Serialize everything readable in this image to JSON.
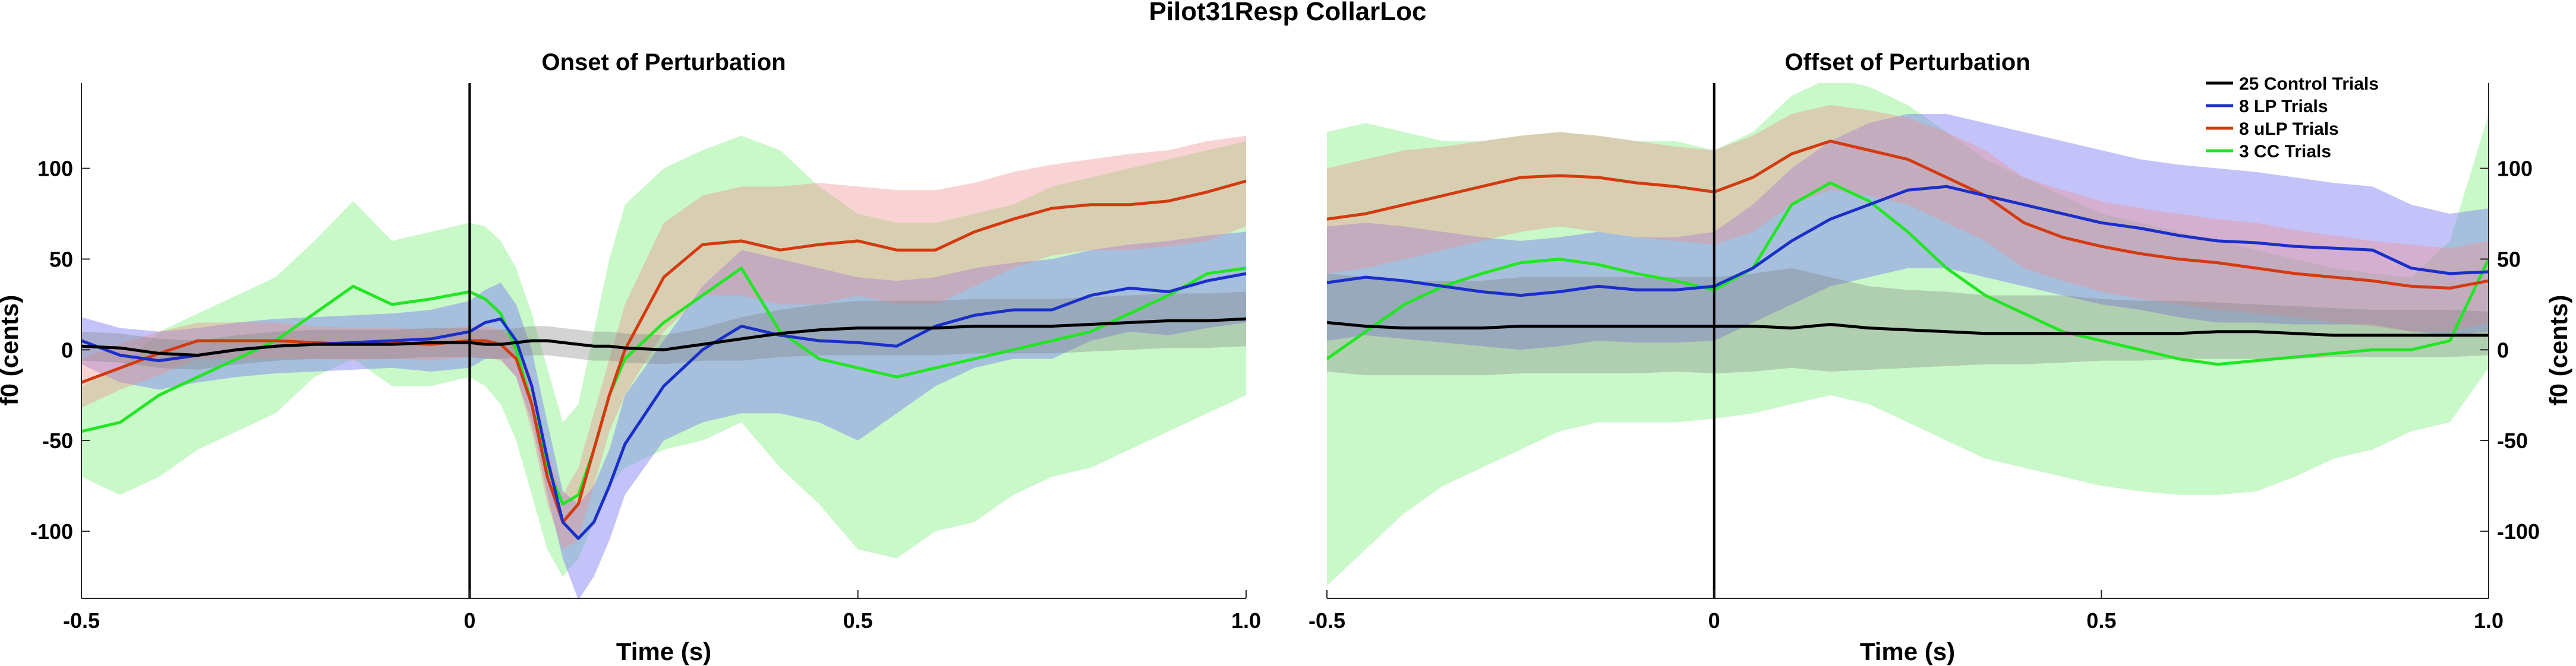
{
  "figure_title": "Pilot31Resp CollarLoc",
  "chart_data": [
    {
      "type": "line",
      "title": "Onset of Perturbation",
      "xlabel": "Time (s)",
      "ylabel": "f0 (cents)",
      "xlim": [
        -0.5,
        1.0
      ],
      "ylim": [
        -137,
        147
      ],
      "xticks": [
        -0.5,
        0,
        0.5,
        1.0
      ],
      "xtick_labels": [
        "-0.5",
        "0",
        "0.5",
        "1.0"
      ],
      "yticks": [
        100,
        50,
        0,
        -50,
        -100
      ],
      "ytick_labels": [
        "100",
        "50",
        "0",
        "-50",
        "-100"
      ],
      "yaxis_side": "left",
      "event_line_x": 0,
      "grid": false,
      "x": [
        -0.5,
        -0.45,
        -0.4,
        -0.35,
        -0.3,
        -0.25,
        -0.2,
        -0.15,
        -0.1,
        -0.05,
        0,
        0.02,
        0.04,
        0.06,
        0.08,
        0.1,
        0.12,
        0.14,
        0.16,
        0.18,
        0.2,
        0.25,
        0.3,
        0.35,
        0.4,
        0.45,
        0.5,
        0.55,
        0.6,
        0.65,
        0.7,
        0.75,
        0.8,
        0.85,
        0.9,
        0.95,
        1.0
      ],
      "series": [
        {
          "name": "25 Control Trials",
          "color": "#000000",
          "band_color": "#808080",
          "band_opacity": 0.35,
          "mean": [
            2,
            1,
            -2,
            -3,
            0,
            2,
            3,
            3,
            3,
            4,
            4,
            3,
            3,
            4,
            5,
            5,
            4,
            3,
            2,
            2,
            1,
            0,
            3,
            6,
            9,
            11,
            12,
            12,
            12,
            13,
            13,
            13,
            14,
            15,
            16,
            16,
            17
          ],
          "upper": [
            10,
            9,
            6,
            5,
            8,
            10,
            11,
            11,
            11,
            12,
            12,
            11,
            11,
            12,
            13,
            13,
            12,
            11,
            10,
            10,
            9,
            8,
            12,
            18,
            22,
            25,
            27,
            27,
            27,
            28,
            28,
            28,
            29,
            30,
            31,
            31,
            32
          ],
          "lower": [
            -6,
            -7,
            -10,
            -11,
            -8,
            -6,
            -5,
            -5,
            -5,
            -4,
            -4,
            -5,
            -5,
            -4,
            -3,
            -3,
            -4,
            -5,
            -6,
            -6,
            -7,
            -8,
            -6,
            -6,
            -4,
            -3,
            -3,
            -3,
            -3,
            -2,
            -2,
            -2,
            -1,
            0,
            1,
            1,
            2
          ]
        },
        {
          "name": "8 LP Trials",
          "color": "#1a2fc9",
          "band_color": "#7b7bf5",
          "band_opacity": 0.45,
          "mean": [
            5,
            -3,
            -6,
            -3,
            0,
            2,
            3,
            4,
            5,
            6,
            10,
            15,
            17,
            5,
            -20,
            -60,
            -95,
            -104,
            -95,
            -75,
            -52,
            -20,
            0,
            13,
            8,
            5,
            4,
            2,
            13,
            19,
            22,
            22,
            30,
            34,
            32,
            38,
            42
          ],
          "upper": [
            18,
            12,
            10,
            12,
            15,
            17,
            18,
            19,
            20,
            22,
            27,
            33,
            37,
            25,
            0,
            -40,
            -78,
            -85,
            -75,
            -55,
            -25,
            5,
            35,
            55,
            50,
            45,
            40,
            38,
            40,
            45,
            48,
            50,
            55,
            58,
            60,
            63,
            65
          ],
          "lower": [
            -8,
            -18,
            -22,
            -18,
            -15,
            -13,
            -12,
            -11,
            -10,
            -12,
            -10,
            -5,
            -5,
            -15,
            -40,
            -80,
            -115,
            -138,
            -125,
            -105,
            -80,
            -50,
            -40,
            -35,
            -35,
            -40,
            -50,
            -35,
            -20,
            -10,
            -5,
            -5,
            5,
            10,
            8,
            12,
            15
          ]
        },
        {
          "name": "8 uLP Trials",
          "color": "#d43a0f",
          "band_color": "#f09090",
          "band_opacity": 0.4,
          "mean": [
            -18,
            -10,
            -2,
            5,
            5,
            5,
            4,
            3,
            4,
            3,
            5,
            5,
            3,
            -5,
            -30,
            -70,
            -95,
            -85,
            -55,
            -25,
            0,
            40,
            58,
            60,
            55,
            58,
            60,
            55,
            55,
            65,
            72,
            78,
            80,
            80,
            82,
            87,
            93
          ],
          "upper": [
            -5,
            3,
            10,
            15,
            15,
            15,
            13,
            12,
            12,
            11,
            13,
            13,
            11,
            5,
            -15,
            -55,
            -80,
            -65,
            -35,
            -5,
            25,
            70,
            85,
            90,
            90,
            92,
            90,
            88,
            88,
            92,
            98,
            102,
            105,
            108,
            110,
            115,
            118
          ],
          "lower": [
            -32,
            -22,
            -14,
            -5,
            -5,
            -5,
            -5,
            -6,
            -5,
            -6,
            -4,
            -4,
            -6,
            -15,
            -45,
            -85,
            -110,
            -105,
            -75,
            -45,
            -25,
            10,
            30,
            30,
            25,
            25,
            30,
            25,
            25,
            35,
            45,
            52,
            55,
            55,
            57,
            60,
            68
          ]
        },
        {
          "name": "3 CC Trials",
          "color": "#22e622",
          "band_color": "#88f088",
          "band_opacity": 0.45,
          "mean": [
            -45,
            -40,
            -25,
            -15,
            -5,
            5,
            20,
            35,
            25,
            28,
            32,
            28,
            20,
            0,
            -30,
            -65,
            -85,
            -80,
            -55,
            -25,
            -5,
            15,
            30,
            45,
            10,
            -5,
            -10,
            -15,
            -10,
            -5,
            0,
            5,
            10,
            20,
            30,
            42,
            45
          ],
          "upper": [
            -20,
            -10,
            10,
            20,
            30,
            40,
            60,
            82,
            60,
            65,
            70,
            68,
            60,
            45,
            20,
            -10,
            -40,
            -30,
            10,
            50,
            80,
            100,
            110,
            118,
            110,
            90,
            75,
            70,
            70,
            75,
            80,
            90,
            95,
            100,
            105,
            110,
            115
          ],
          "lower": [
            -70,
            -80,
            -70,
            -55,
            -45,
            -35,
            -15,
            -5,
            -20,
            -20,
            -15,
            -20,
            -30,
            -50,
            -80,
            -110,
            -125,
            -115,
            -95,
            -75,
            -65,
            -55,
            -50,
            -40,
            -65,
            -85,
            -110,
            -115,
            -100,
            -95,
            -80,
            -70,
            -65,
            -55,
            -45,
            -35,
            -25
          ]
        }
      ]
    },
    {
      "type": "line",
      "title": "Offset of Perturbation",
      "xlabel": "Time (s)",
      "ylabel": "f0 (cents)",
      "xlim": [
        -0.5,
        1.0
      ],
      "ylim": [
        -137,
        147
      ],
      "xticks": [
        -0.5,
        0,
        0.5,
        1.0
      ],
      "xtick_labels": [
        "-0.5",
        "0",
        "0.5",
        "1.0"
      ],
      "yticks": [
        100,
        50,
        0,
        -50,
        -100
      ],
      "ytick_labels": [
        "100",
        "50",
        "0",
        "-50",
        "-100"
      ],
      "yaxis_side": "right",
      "event_line_x": 0,
      "grid": false,
      "legend_position": "top-right",
      "x": [
        -0.5,
        -0.45,
        -0.4,
        -0.35,
        -0.3,
        -0.25,
        -0.2,
        -0.15,
        -0.1,
        -0.05,
        0,
        0.05,
        0.1,
        0.15,
        0.2,
        0.25,
        0.3,
        0.35,
        0.4,
        0.45,
        0.5,
        0.55,
        0.6,
        0.65,
        0.7,
        0.75,
        0.8,
        0.85,
        0.9,
        0.95,
        1.0
      ],
      "series": [
        {
          "name": "25 Control Trials",
          "color": "#000000",
          "band_color": "#808080",
          "band_opacity": 0.35,
          "mean": [
            15,
            13,
            12,
            12,
            12,
            13,
            13,
            13,
            13,
            13,
            13,
            13,
            12,
            14,
            12,
            11,
            10,
            9,
            9,
            9,
            9,
            9,
            9,
            10,
            10,
            9,
            8,
            8,
            8,
            8,
            8
          ],
          "upper": [
            42,
            40,
            38,
            38,
            38,
            40,
            40,
            40,
            40,
            40,
            40,
            42,
            45,
            40,
            35,
            33,
            32,
            30,
            30,
            30,
            28,
            27,
            27,
            26,
            25,
            24,
            23,
            22,
            22,
            22,
            21
          ],
          "lower": [
            -12,
            -14,
            -14,
            -14,
            -14,
            -13,
            -13,
            -13,
            -13,
            -12,
            -13,
            -12,
            -10,
            -12,
            -11,
            -10,
            -9,
            -8,
            -8,
            -7,
            -6,
            -6,
            -5,
            -5,
            -5,
            -5,
            -4,
            -4,
            -4,
            -4,
            -3
          ]
        },
        {
          "name": "8 LP Trials",
          "color": "#1a2fc9",
          "band_color": "#7b7bf5",
          "band_opacity": 0.45,
          "mean": [
            37,
            40,
            38,
            35,
            32,
            30,
            32,
            35,
            33,
            33,
            35,
            45,
            60,
            72,
            80,
            88,
            90,
            85,
            80,
            75,
            70,
            67,
            63,
            60,
            59,
            57,
            56,
            55,
            45,
            42,
            43
          ],
          "upper": [
            68,
            70,
            68,
            65,
            62,
            60,
            62,
            65,
            62,
            62,
            65,
            80,
            100,
            115,
            125,
            130,
            130,
            125,
            120,
            115,
            110,
            105,
            102,
            100,
            98,
            95,
            92,
            90,
            80,
            75,
            78
          ],
          "lower": [
            5,
            8,
            6,
            4,
            2,
            0,
            2,
            5,
            4,
            4,
            5,
            15,
            25,
            35,
            40,
            45,
            45,
            40,
            35,
            30,
            25,
            22,
            18,
            15,
            15,
            14,
            14,
            14,
            10,
            8,
            10
          ]
        },
        {
          "name": "8 uLP Trials",
          "color": "#d43a0f",
          "band_color": "#f09090",
          "band_opacity": 0.4,
          "mean": [
            72,
            75,
            80,
            85,
            90,
            95,
            96,
            95,
            92,
            90,
            87,
            95,
            108,
            115,
            110,
            105,
            95,
            85,
            70,
            62,
            57,
            53,
            50,
            48,
            45,
            42,
            40,
            38,
            35,
            34,
            38
          ],
          "upper": [
            100,
            105,
            110,
            112,
            115,
            118,
            120,
            118,
            115,
            112,
            110,
            118,
            130,
            135,
            132,
            128,
            120,
            110,
            95,
            88,
            82,
            78,
            75,
            72,
            70,
            66,
            63,
            60,
            58,
            56,
            60
          ],
          "lower": [
            42,
            45,
            50,
            55,
            60,
            65,
            68,
            65,
            62,
            60,
            58,
            65,
            80,
            88,
            85,
            80,
            70,
            60,
            45,
            38,
            32,
            28,
            25,
            22,
            20,
            18,
            15,
            13,
            10,
            10,
            15
          ]
        },
        {
          "name": "3 CC Trials",
          "color": "#22e622",
          "band_color": "#88f088",
          "band_opacity": 0.45,
          "mean": [
            -5,
            10,
            25,
            35,
            42,
            48,
            50,
            47,
            42,
            38,
            33,
            45,
            80,
            92,
            82,
            65,
            45,
            30,
            20,
            10,
            5,
            0,
            -5,
            -8,
            -6,
            -4,
            -2,
            0,
            0,
            5,
            50
          ],
          "upper": [
            120,
            125,
            120,
            115,
            115,
            118,
            120,
            118,
            115,
            115,
            110,
            120,
            140,
            150,
            145,
            135,
            120,
            105,
            95,
            85,
            75,
            70,
            65,
            60,
            55,
            50,
            45,
            42,
            40,
            60,
            130
          ],
          "lower": [
            -130,
            -110,
            -90,
            -75,
            -65,
            -55,
            -45,
            -40,
            -40,
            -40,
            -38,
            -35,
            -30,
            -25,
            -30,
            -40,
            -50,
            -60,
            -65,
            -70,
            -75,
            -78,
            -80,
            -80,
            -78,
            -70,
            -60,
            -55,
            -45,
            -40,
            -10
          ]
        }
      ]
    }
  ]
}
